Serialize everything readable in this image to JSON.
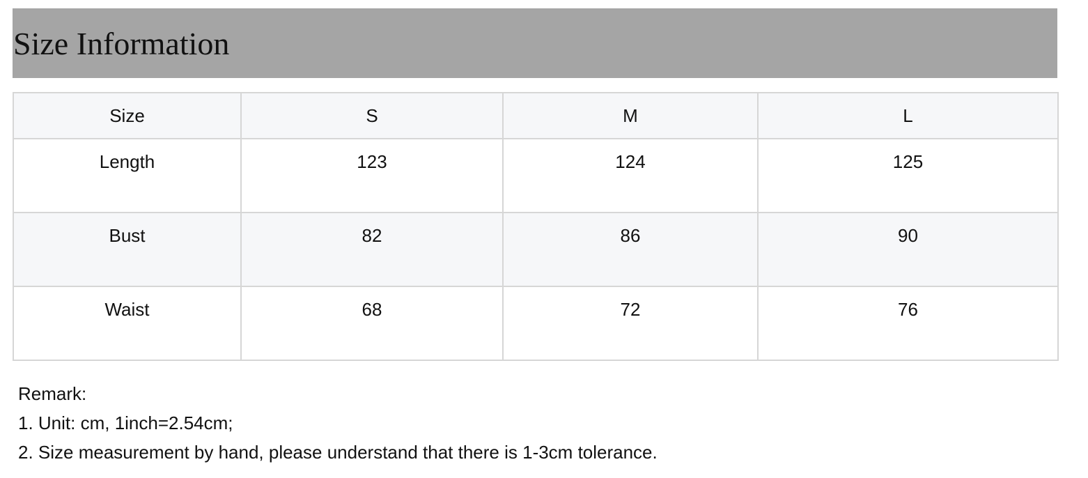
{
  "title": "Size Information",
  "table": {
    "headers": [
      "Size",
      "S",
      "M",
      "L"
    ],
    "rows": [
      {
        "label": "Length",
        "values": [
          "123",
          "124",
          "125"
        ]
      },
      {
        "label": "Bust",
        "values": [
          "82",
          "86",
          "90"
        ]
      },
      {
        "label": "Waist",
        "values": [
          "68",
          "72",
          "76"
        ]
      }
    ]
  },
  "remarks": {
    "heading": "Remark:",
    "lines": [
      "1. Unit: cm, 1inch=2.54cm;",
      "2. Size measurement by hand, please understand that there is 1-3cm tolerance."
    ]
  },
  "colors": {
    "title_bar_bg": "#a5a5a5",
    "header_row_bg": "#f6f7f9",
    "border": "#d6d6d6"
  }
}
